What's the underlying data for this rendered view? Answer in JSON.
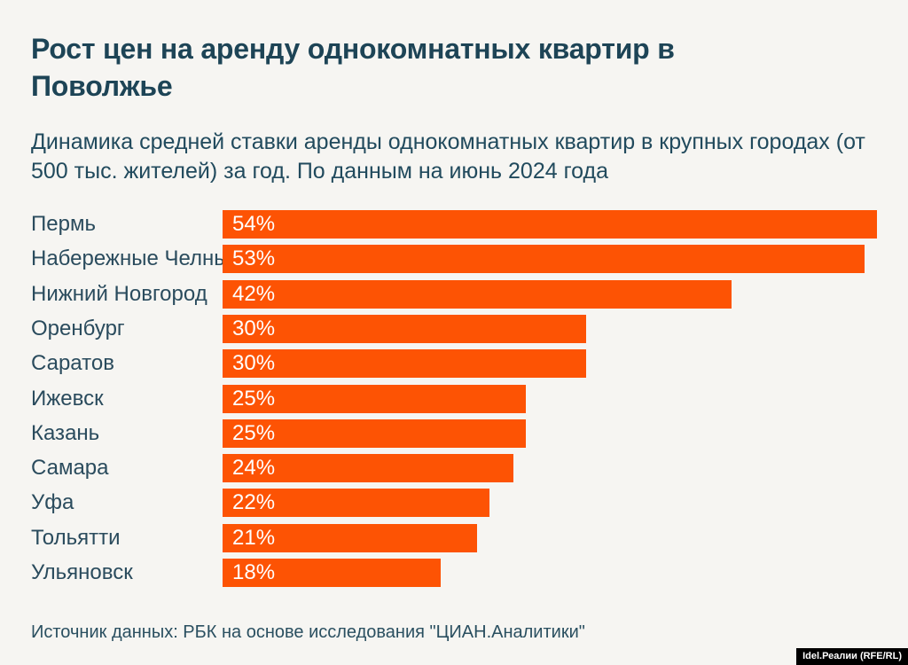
{
  "header": {
    "title": "Рост цен на аренду однокомнатных квартир в Поволжье",
    "subtitle": "Динамика средней ставки аренды однокомнатных квартир в крупных городах (от 500 тыс. жителей) за год. По данным на июнь 2024 года"
  },
  "chart_data": {
    "type": "bar",
    "orientation": "horizontal",
    "title": "Рост цен на аренду однокомнатных квартир в Поволжье",
    "subtitle": "Динамика средней ставки аренды однокомнатных квартир в крупных городах (от 500 тыс. жителей) за год. По данным на июнь 2024 года",
    "categories": [
      "Пермь",
      "Набережные Челны",
      "Нижний Новгород",
      "Оренбург",
      "Саратов",
      "Ижевск",
      "Казань",
      "Самара",
      "Уфа",
      "Тольятти",
      "Ульяновск"
    ],
    "values": [
      54,
      53,
      42,
      30,
      30,
      25,
      25,
      24,
      22,
      21,
      18
    ],
    "value_suffix": "%",
    "value_label_position": "inside-left",
    "xlabel": "",
    "ylabel": "",
    "xlim": [
      0,
      54
    ],
    "grid": false,
    "legend": false,
    "bar_color": "#fd5304"
  },
  "footer": {
    "source": "Источник данных: РБК на основе исследования \"ЦИАН.Аналитики\"",
    "badge": "Idel.Реалии (RFE/RL)"
  },
  "colors": {
    "background": "#f6f5f2",
    "title_text": "#1d4456",
    "label_text": "#2a4b5d",
    "bar": "#fd5304",
    "value_text": "#ffffff",
    "badge_background": "#000000",
    "badge_text": "#ffffff"
  }
}
